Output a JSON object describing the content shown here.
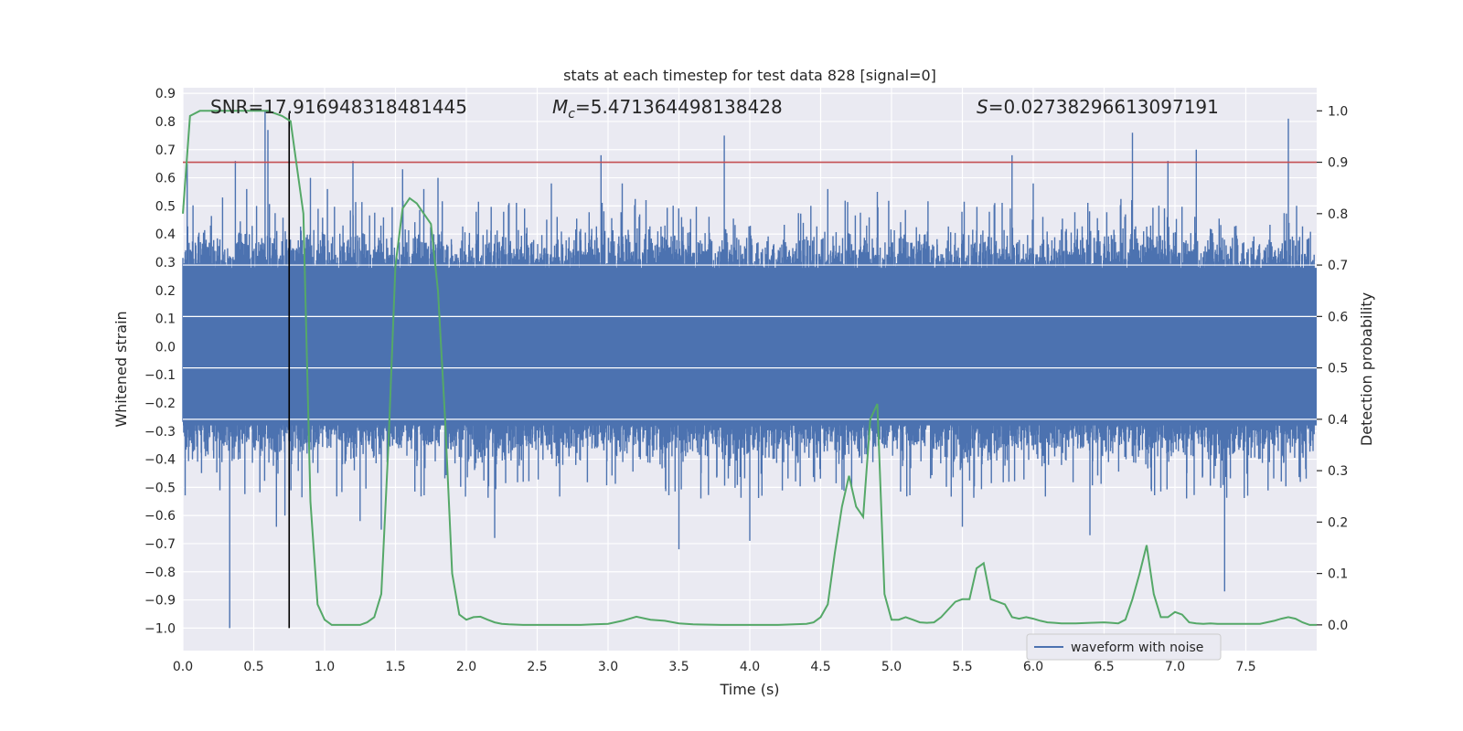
{
  "chart_data": {
    "type": "line",
    "title": "stats at each timestep for test data 828 [signal=0]",
    "xlabel": "Time (s)",
    "ylabel_left": "Whitened strain",
    "ylabel_right": "Detection probability",
    "xlim": [
      0.0,
      8.0
    ],
    "ylim_left": [
      -1.08,
      0.92
    ],
    "ylim_right": [
      -0.05,
      1.045
    ],
    "x_ticks": [
      "0.0",
      "0.5",
      "1.0",
      "1.5",
      "2.0",
      "2.5",
      "3.0",
      "3.5",
      "4.0",
      "4.5",
      "5.0",
      "5.5",
      "6.0",
      "6.5",
      "7.0",
      "7.5"
    ],
    "y_left_ticks": [
      "0.9",
      "0.8",
      "0.7",
      "0.6",
      "0.5",
      "0.4",
      "0.3",
      "0.2",
      "0.1",
      "0.0",
      "−0.1",
      "−0.2",
      "−0.3",
      "−0.4",
      "−0.5",
      "−0.6",
      "−0.7",
      "−0.8",
      "−0.9",
      "−1.0"
    ],
    "y_right_ticks": [
      "1.0",
      "0.9",
      "0.8",
      "0.7",
      "0.6",
      "0.5",
      "0.4",
      "0.3",
      "0.2",
      "0.1",
      "0.0"
    ],
    "grid": true,
    "legend_position": "lower-right",
    "annotations": {
      "snr": "SNR=17.916948318481445",
      "mc_symbol": "M",
      "mc_sub": "c",
      "mc_value": "=5.471364498138428",
      "s_symbol": "S",
      "s_value": "=0.02738296613097191"
    },
    "threshold_line": {
      "axis": "right",
      "y": 0.9,
      "color": "#c44e52"
    },
    "vertical_line": {
      "x": 0.75,
      "color": "#000000"
    },
    "series": [
      {
        "name": "waveform with noise",
        "axis": "left",
        "color": "#4c72b0",
        "description_envelope": {
          "typical_abs": 0.3,
          "noise_peaks_x": [
            0.03,
            0.28,
            0.33,
            0.37,
            0.45,
            0.52,
            0.58,
            0.6,
            0.66,
            0.72,
            0.9,
            1.02,
            1.2,
            1.25,
            1.4,
            1.55,
            1.7,
            1.8,
            2.2,
            2.6,
            2.95,
            3.1,
            3.5,
            3.82,
            4.0,
            4.55,
            4.9,
            5.5,
            5.85,
            6.0,
            6.4,
            6.7,
            6.95,
            7.15,
            7.35,
            7.8
          ],
          "noise_peaks_y": [
            0.65,
            0.53,
            -1.0,
            0.66,
            0.56,
            0.5,
            0.84,
            0.77,
            -0.64,
            -0.6,
            0.6,
            0.56,
            0.66,
            -0.62,
            -0.65,
            0.63,
            0.56,
            0.6,
            -0.68,
            0.58,
            0.68,
            0.58,
            -0.72,
            0.75,
            -0.69,
            0.56,
            0.55,
            -0.64,
            0.68,
            0.58,
            -0.67,
            0.76,
            0.66,
            0.7,
            -0.87,
            0.81
          ]
        }
      },
      {
        "name": "",
        "axis": "right",
        "color": "#55a868",
        "x": [
          0.0,
          0.05,
          0.12,
          0.2,
          0.3,
          0.4,
          0.5,
          0.6,
          0.7,
          0.76,
          0.8,
          0.85,
          0.9,
          0.95,
          1.0,
          1.05,
          1.1,
          1.15,
          1.2,
          1.25,
          1.3,
          1.35,
          1.4,
          1.45,
          1.5,
          1.55,
          1.6,
          1.65,
          1.7,
          1.75,
          1.8,
          1.85,
          1.9,
          1.95,
          2.0,
          2.05,
          2.1,
          2.15,
          2.2,
          2.25,
          2.3,
          2.4,
          2.5,
          2.6,
          2.7,
          2.8,
          2.9,
          3.0,
          3.1,
          3.2,
          3.3,
          3.4,
          3.5,
          3.6,
          3.8,
          4.0,
          4.2,
          4.4,
          4.45,
          4.5,
          4.55,
          4.6,
          4.65,
          4.7,
          4.75,
          4.8,
          4.85,
          4.9,
          4.95,
          5.0,
          5.05,
          5.1,
          5.15,
          5.2,
          5.25,
          5.3,
          5.35,
          5.4,
          5.45,
          5.5,
          5.55,
          5.6,
          5.65,
          5.7,
          5.75,
          5.8,
          5.85,
          5.9,
          5.95,
          6.0,
          6.05,
          6.1,
          6.15,
          6.2,
          6.3,
          6.4,
          6.5,
          6.55,
          6.6,
          6.65,
          6.7,
          6.75,
          6.8,
          6.85,
          6.9,
          6.95,
          7.0,
          7.05,
          7.1,
          7.15,
          7.2,
          7.25,
          7.3,
          7.35,
          7.4,
          7.5,
          7.6,
          7.7,
          7.75,
          7.8,
          7.85,
          7.9,
          7.95,
          8.0
        ],
        "y": [
          0.8,
          0.99,
          1.0,
          1.0,
          1.0,
          1.0,
          1.0,
          1.0,
          0.99,
          0.98,
          0.9,
          0.8,
          0.24,
          0.04,
          0.01,
          0.0,
          0.0,
          0.0,
          0.0,
          0.0,
          0.005,
          0.015,
          0.06,
          0.35,
          0.7,
          0.81,
          0.83,
          0.82,
          0.8,
          0.78,
          0.65,
          0.4,
          0.1,
          0.02,
          0.01,
          0.015,
          0.016,
          0.01,
          0.005,
          0.002,
          0.001,
          0.0,
          0.0,
          0.0,
          0.0,
          0.0,
          0.001,
          0.002,
          0.008,
          0.016,
          0.01,
          0.008,
          0.003,
          0.001,
          0.0,
          0.0,
          0.0,
          0.002,
          0.005,
          0.015,
          0.04,
          0.14,
          0.23,
          0.29,
          0.23,
          0.21,
          0.4,
          0.43,
          0.06,
          0.01,
          0.01,
          0.015,
          0.01,
          0.005,
          0.004,
          0.005,
          0.015,
          0.03,
          0.045,
          0.05,
          0.05,
          0.11,
          0.12,
          0.05,
          0.045,
          0.04,
          0.015,
          0.012,
          0.015,
          0.012,
          0.008,
          0.005,
          0.004,
          0.003,
          0.003,
          0.004,
          0.005,
          0.004,
          0.003,
          0.01,
          0.05,
          0.1,
          0.155,
          0.06,
          0.015,
          0.015,
          0.025,
          0.02,
          0.005,
          0.003,
          0.002,
          0.003,
          0.002,
          0.002,
          0.002,
          0.002,
          0.002,
          0.008,
          0.012,
          0.015,
          0.012,
          0.005,
          0.0,
          0.0
        ]
      }
    ]
  }
}
